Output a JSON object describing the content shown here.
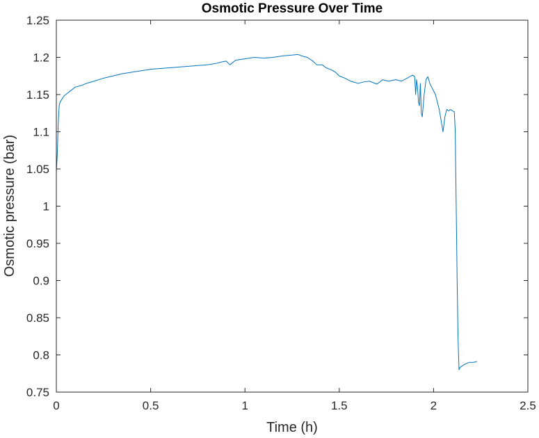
{
  "chart_data": {
    "type": "line",
    "title": "Osmotic Pressure Over Time",
    "xlabel": "Time (h)",
    "ylabel": "Osmotic pressure (bar)",
    "xlim": [
      0,
      2.5
    ],
    "ylim": [
      0.75,
      1.25
    ],
    "xticks": [
      0,
      0.5,
      1,
      1.5,
      2,
      2.5
    ],
    "xtick_labels": [
      "0",
      "0.5",
      "1",
      "1.5",
      "2",
      "2.5"
    ],
    "yticks": [
      0.75,
      0.8,
      0.85,
      0.9,
      0.95,
      1,
      1.05,
      1.1,
      1.15,
      1.2,
      1.25
    ],
    "ytick_labels": [
      "0.75",
      "0.8",
      "0.85",
      "0.9",
      "0.95",
      "1",
      "1.05",
      "1.1",
      "1.15",
      "1.2",
      "1.25"
    ],
    "grid": false,
    "line_color": "#0072BD",
    "series": [
      {
        "x": [
          0.0,
          0.005,
          0.01,
          0.015,
          0.02,
          0.04,
          0.06,
          0.08,
          0.1,
          0.13,
          0.16,
          0.2,
          0.25,
          0.3,
          0.35,
          0.4,
          0.45,
          0.5,
          0.55,
          0.6,
          0.65,
          0.7,
          0.75,
          0.8,
          0.85,
          0.88,
          0.9,
          0.92,
          0.95,
          0.97,
          1.0,
          1.05,
          1.1,
          1.15,
          1.2,
          1.25,
          1.28,
          1.3,
          1.33,
          1.36,
          1.38,
          1.41,
          1.43,
          1.46,
          1.48,
          1.5,
          1.53,
          1.56,
          1.6,
          1.63,
          1.66,
          1.7,
          1.73,
          1.76,
          1.8,
          1.83,
          1.86,
          1.88,
          1.89,
          1.9,
          1.905,
          1.91,
          1.915,
          1.92,
          1.925,
          1.93,
          1.935,
          1.94,
          1.95,
          1.96,
          1.97,
          1.98,
          1.99,
          2.0,
          2.01,
          2.02,
          2.03,
          2.04,
          2.05,
          2.06,
          2.07,
          2.08,
          2.09,
          2.1,
          2.11,
          2.115,
          2.12,
          2.125,
          2.13,
          2.135,
          2.14,
          2.15,
          2.17,
          2.19,
          2.21,
          2.23
        ],
        "values": [
          1.045,
          1.07,
          1.11,
          1.135,
          1.14,
          1.148,
          1.152,
          1.156,
          1.16,
          1.162,
          1.165,
          1.168,
          1.172,
          1.175,
          1.178,
          1.18,
          1.182,
          1.184,
          1.185,
          1.186,
          1.187,
          1.188,
          1.189,
          1.19,
          1.192,
          1.194,
          1.195,
          1.19,
          1.196,
          1.197,
          1.198,
          1.2,
          1.199,
          1.2,
          1.202,
          1.203,
          1.204,
          1.202,
          1.2,
          1.195,
          1.19,
          1.19,
          1.186,
          1.183,
          1.18,
          1.175,
          1.172,
          1.168,
          1.165,
          1.167,
          1.168,
          1.164,
          1.17,
          1.168,
          1.17,
          1.168,
          1.172,
          1.175,
          1.176,
          1.174,
          1.15,
          1.17,
          1.16,
          1.14,
          1.135,
          1.165,
          1.125,
          1.12,
          1.15,
          1.17,
          1.174,
          1.165,
          1.16,
          1.155,
          1.15,
          1.14,
          1.13,
          1.115,
          1.1,
          1.12,
          1.13,
          1.128,
          1.13,
          1.128,
          1.127,
          1.1,
          1.0,
          0.9,
          0.82,
          0.78,
          0.783,
          0.785,
          0.788,
          0.79,
          0.79,
          0.791
        ]
      }
    ]
  }
}
